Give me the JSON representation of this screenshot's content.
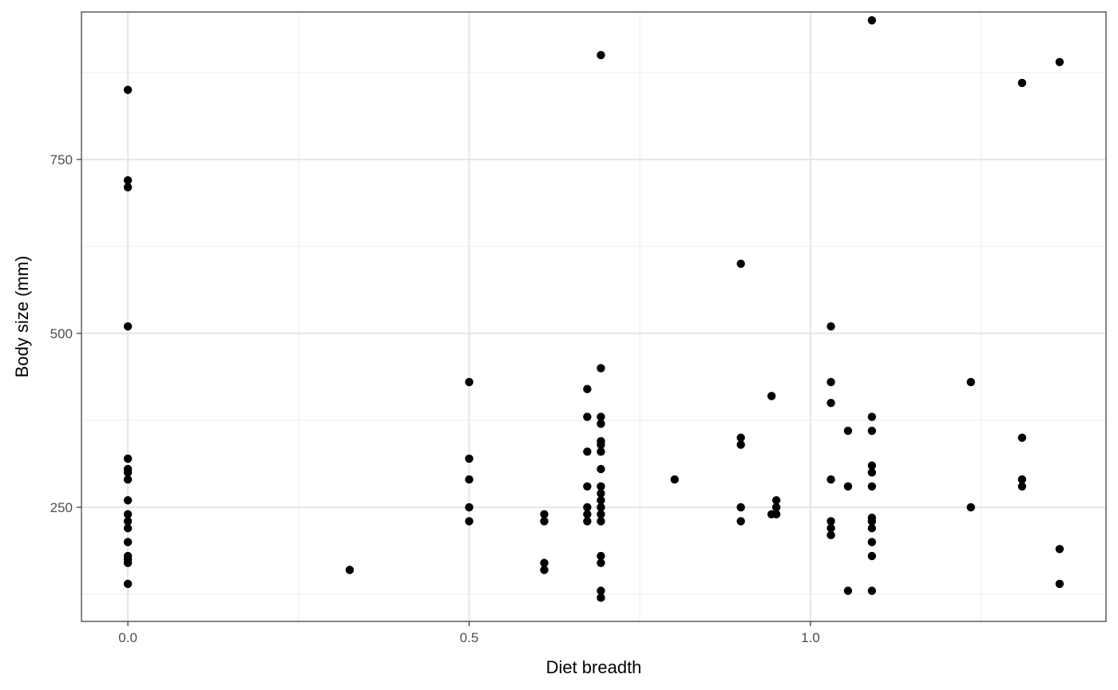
{
  "chart_data": {
    "type": "scatter",
    "xlabel": "Diet breadth",
    "ylabel": "Body size (mm)",
    "xlim": [
      -0.068,
      1.433
    ],
    "ylim": [
      86,
      962
    ],
    "x_ticks": [
      0.0,
      0.5,
      1.0
    ],
    "x_tick_labels": [
      "0.0",
      "0.5",
      "1.0"
    ],
    "x_minor_ticks": [
      0.25,
      0.75,
      1.25
    ],
    "y_ticks": [
      250,
      500,
      750
    ],
    "y_tick_labels": [
      "250",
      "500",
      "750"
    ],
    "y_minor_ticks": [
      125,
      375,
      625,
      875
    ],
    "grid": true,
    "legend": false,
    "point_color": "#000000",
    "points": [
      [
        0.0,
        850
      ],
      [
        0.0,
        720
      ],
      [
        0.0,
        710
      ],
      [
        0.0,
        510
      ],
      [
        0.0,
        320
      ],
      [
        0.0,
        305
      ],
      [
        0.0,
        300
      ],
      [
        0.0,
        290
      ],
      [
        0.0,
        260
      ],
      [
        0.0,
        240
      ],
      [
        0.0,
        230
      ],
      [
        0.0,
        220
      ],
      [
        0.0,
        200
      ],
      [
        0.0,
        180
      ],
      [
        0.0,
        175
      ],
      [
        0.0,
        170
      ],
      [
        0.0,
        140
      ],
      [
        0.325,
        160
      ],
      [
        0.5,
        430
      ],
      [
        0.5,
        320
      ],
      [
        0.5,
        290
      ],
      [
        0.5,
        250
      ],
      [
        0.5,
        230
      ],
      [
        0.61,
        240
      ],
      [
        0.61,
        230
      ],
      [
        0.61,
        170
      ],
      [
        0.61,
        160
      ],
      [
        0.673,
        420
      ],
      [
        0.673,
        380
      ],
      [
        0.673,
        330
      ],
      [
        0.673,
        280
      ],
      [
        0.673,
        250
      ],
      [
        0.673,
        240
      ],
      [
        0.673,
        230
      ],
      [
        0.693,
        900
      ],
      [
        0.693,
        450
      ],
      [
        0.693,
        380
      ],
      [
        0.693,
        370
      ],
      [
        0.693,
        345
      ],
      [
        0.693,
        340
      ],
      [
        0.693,
        330
      ],
      [
        0.693,
        305
      ],
      [
        0.693,
        280
      ],
      [
        0.693,
        270
      ],
      [
        0.693,
        260
      ],
      [
        0.693,
        250
      ],
      [
        0.693,
        240
      ],
      [
        0.693,
        230
      ],
      [
        0.693,
        180
      ],
      [
        0.693,
        170
      ],
      [
        0.693,
        130
      ],
      [
        0.693,
        120
      ],
      [
        0.801,
        290
      ],
      [
        0.898,
        600
      ],
      [
        0.898,
        350
      ],
      [
        0.898,
        340
      ],
      [
        0.898,
        250
      ],
      [
        0.898,
        230
      ],
      [
        0.943,
        410
      ],
      [
        0.943,
        240
      ],
      [
        0.95,
        260
      ],
      [
        0.95,
        250
      ],
      [
        0.95,
        240
      ],
      [
        1.03,
        510
      ],
      [
        1.03,
        430
      ],
      [
        1.03,
        400
      ],
      [
        1.03,
        290
      ],
      [
        1.03,
        230
      ],
      [
        1.03,
        220
      ],
      [
        1.03,
        210
      ],
      [
        1.055,
        360
      ],
      [
        1.055,
        280
      ],
      [
        1.055,
        130
      ],
      [
        1.09,
        950
      ],
      [
        1.09,
        380
      ],
      [
        1.09,
        360
      ],
      [
        1.09,
        310
      ],
      [
        1.09,
        300
      ],
      [
        1.09,
        280
      ],
      [
        1.09,
        235
      ],
      [
        1.09,
        230
      ],
      [
        1.09,
        220
      ],
      [
        1.09,
        200
      ],
      [
        1.09,
        180
      ],
      [
        1.09,
        130
      ],
      [
        1.235,
        430
      ],
      [
        1.235,
        250
      ],
      [
        1.31,
        860
      ],
      [
        1.31,
        350
      ],
      [
        1.31,
        290
      ],
      [
        1.31,
        280
      ],
      [
        1.365,
        890
      ],
      [
        1.365,
        190
      ],
      [
        1.365,
        140
      ]
    ]
  }
}
